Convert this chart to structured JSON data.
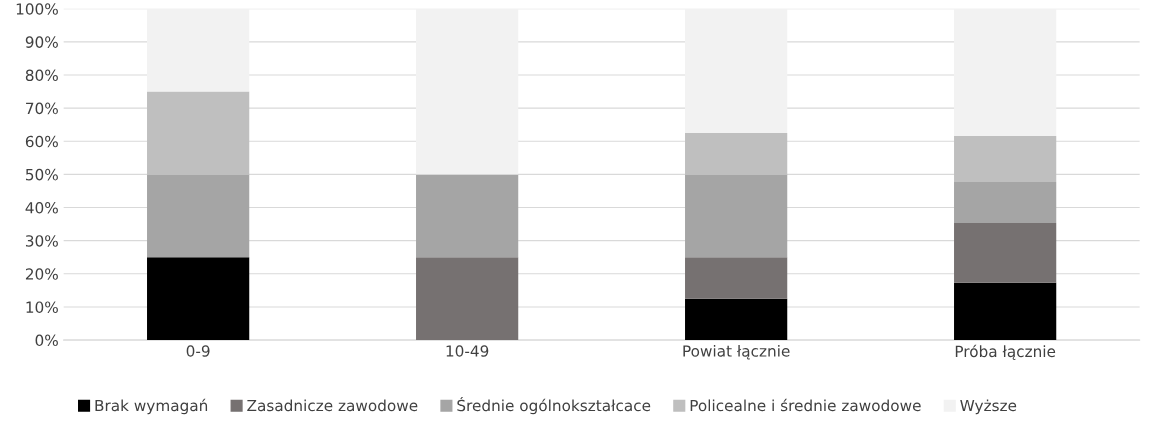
{
  "chart_data": {
    "type": "bar",
    "stacked": true,
    "categories": [
      "0-9",
      "10-49",
      "Powiat łącznie",
      "Próba łącznie"
    ],
    "series": [
      {
        "name": "Brak wymagań",
        "color": "#000000",
        "values": [
          25,
          0,
          12.5,
          17.3
        ]
      },
      {
        "name": "Zasadnicze zawodowe",
        "color": "#767171",
        "values": [
          0,
          25,
          12.5,
          18.0
        ]
      },
      {
        "name": "Średnie ogólnokształcace",
        "color": "#a5a5a5",
        "values": [
          25,
          25,
          25,
          12.4
        ]
      },
      {
        "name": "Policealne i średnie zawodowe",
        "color": "#bfbfbf",
        "values": [
          25,
          0,
          12.5,
          13.9
        ]
      },
      {
        "name": "Wyższe",
        "color": "#f2f2f2",
        "values": [
          25,
          50,
          37.5,
          38.4
        ]
      }
    ],
    "ylim": [
      0,
      100
    ],
    "yticks": [
      {
        "value": 0,
        "label": "0%"
      },
      {
        "value": 10,
        "label": "10%"
      },
      {
        "value": 20,
        "label": "20%"
      },
      {
        "value": 30,
        "label": "30%"
      },
      {
        "value": 40,
        "label": "40%"
      },
      {
        "value": 50,
        "label": "50%"
      },
      {
        "value": 60,
        "label": "60%"
      },
      {
        "value": 70,
        "label": "70%"
      },
      {
        "value": 80,
        "label": "80%"
      },
      {
        "value": 90,
        "label": "90%"
      },
      {
        "value": 100,
        "label": "100%"
      }
    ],
    "grid": "y",
    "legend": "bottom"
  }
}
